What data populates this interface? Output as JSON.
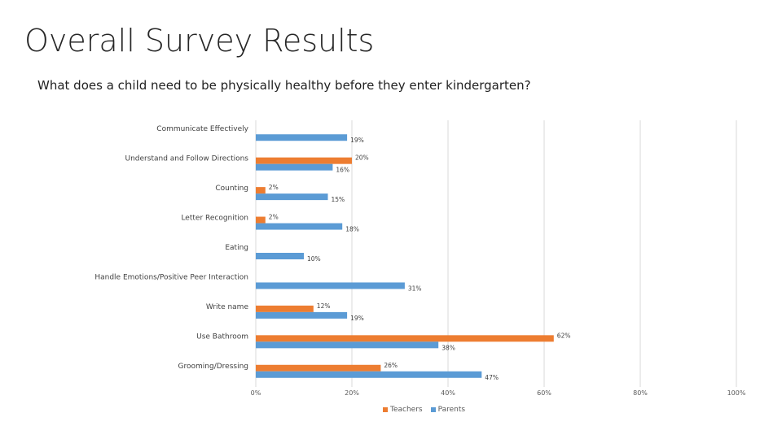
{
  "slide": {
    "title": "Overall Survey Results",
    "subtitle": "What does a child need to be physically healthy before they enter kindergarten?"
  },
  "colors": {
    "teachers": "#ed7d31",
    "parents": "#5b9bd5",
    "grid": "#d9d9d9"
  },
  "chart_data": {
    "type": "bar",
    "orientation": "horizontal",
    "categories": [
      "Communicate Effectively",
      "Understand and Follow Directions",
      "Counting",
      "Letter Recognition",
      "Eating",
      "Handle Emotions/Positive Peer Interaction",
      "Write name",
      "Use Bathroom",
      "Grooming/Dressing"
    ],
    "series": [
      {
        "name": "Teachers",
        "values": [
          null,
          20,
          2,
          2,
          null,
          null,
          12,
          62,
          26
        ],
        "labels": [
          "",
          "20%",
          "2%",
          "2%",
          "",
          "",
          "12%",
          "62%",
          "26%"
        ]
      },
      {
        "name": "Parents",
        "values": [
          19,
          16,
          15,
          18,
          10,
          31,
          19,
          38,
          47
        ],
        "labels": [
          "19%",
          "16%",
          "15%",
          "18%",
          "10%",
          "31%",
          "19%",
          "38%",
          "47%"
        ]
      }
    ],
    "x_ticks": [
      "0%",
      "20%",
      "40%",
      "60%",
      "80%",
      "100%"
    ],
    "xlim": [
      0,
      100
    ],
    "grid": true,
    "legend_position": "bottom"
  }
}
